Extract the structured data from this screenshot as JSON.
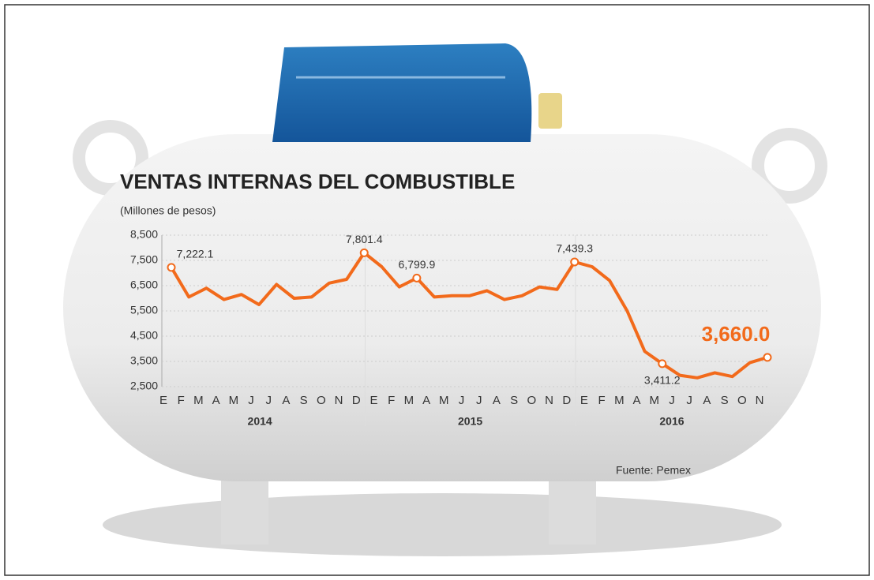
{
  "chart_data": {
    "type": "line",
    "title": "VENTAS INTERNAS DEL COMBUSTIBLE",
    "subtitle": "(Millones de pesos)",
    "source": "Fuente: Pemex",
    "categories": [
      "E",
      "F",
      "M",
      "A",
      "M",
      "J",
      "J",
      "A",
      "S",
      "O",
      "N",
      "D",
      "E",
      "F",
      "M",
      "A",
      "M",
      "J",
      "J",
      "A",
      "S",
      "O",
      "N",
      "D",
      "E",
      "F",
      "M",
      "A",
      "M",
      "J",
      "J",
      "A",
      "S",
      "O",
      "N"
    ],
    "years": [
      "2014",
      "2015",
      "2016"
    ],
    "values": [
      7222.1,
      6050,
      6400,
      5950,
      6150,
      5750,
      6550,
      6000,
      6050,
      6600,
      6750,
      7801.4,
      7250,
      6450,
      6799.9,
      6050,
      6100,
      6100,
      6300,
      5950,
      6100,
      6450,
      6350,
      7439.3,
      7250,
      6700,
      5500,
      3900,
      3411.2,
      2950,
      2850,
      3050,
      2900,
      3450,
      3660.0
    ],
    "value_labels": [
      "7,222.1",
      null,
      null,
      null,
      null,
      null,
      null,
      null,
      null,
      null,
      null,
      "7,801.4",
      null,
      null,
      "6,799.9",
      null,
      null,
      null,
      null,
      null,
      null,
      null,
      null,
      "7,439.3",
      null,
      null,
      null,
      null,
      "3,411.2",
      null,
      null,
      null,
      null,
      null,
      "3,660.0"
    ],
    "color": "#f26a1b",
    "ylim": [
      2500,
      8500
    ],
    "yticks": [
      {
        "value": 2500,
        "label": "2,500"
      },
      {
        "value": 3500,
        "label": "3,500"
      },
      {
        "value": 4500,
        "label": "4,500"
      },
      {
        "value": 5500,
        "label": "5,500"
      },
      {
        "value": 6500,
        "label": "6,500"
      },
      {
        "value": 7500,
        "label": "7,500"
      },
      {
        "value": 8500,
        "label": "8,500"
      }
    ],
    "grid": true
  }
}
